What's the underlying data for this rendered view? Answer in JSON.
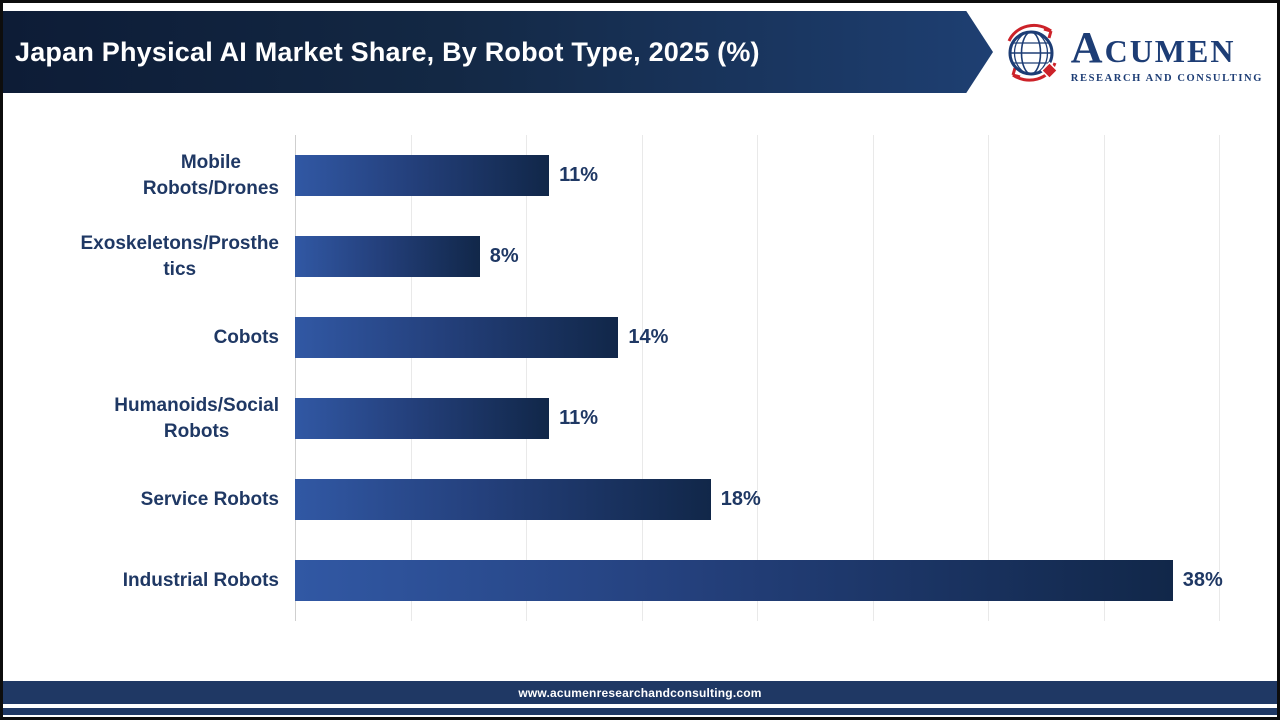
{
  "header": {
    "title": "Japan Physical AI Market Share, By Robot Type, 2025 (%)"
  },
  "logo": {
    "brand_initial": "A",
    "brand_rest": "CUMEN",
    "tagline": "RESEARCH AND CONSULTING",
    "globe_icon": "globe-with-red-orbit-arrows",
    "colors": {
      "navy": "#1d3d75",
      "red": "#cc2229"
    }
  },
  "footer": {
    "website": "www.acumenresearchandconsulting.com"
  },
  "chart_data": {
    "type": "bar",
    "orientation": "horizontal",
    "title": "Japan Physical AI Market Share, By Robot Type, 2025 (%)",
    "categories": [
      "Mobile Robots/Drones",
      "Exoskeletons/Prosthetics",
      "Cobots",
      "Humanoids/Social Robots",
      "Service Robots",
      "Industrial Robots"
    ],
    "category_label_lines": [
      [
        "Mobile",
        "Robots/Drones"
      ],
      [
        "Exoskeletons/Prosthe",
        "tics"
      ],
      [
        "Cobots"
      ],
      [
        "Humanoids/Social",
        "Robots"
      ],
      [
        "Service Robots"
      ],
      [
        "Industrial Robots"
      ]
    ],
    "values": [
      11,
      8,
      14,
      11,
      18,
      38
    ],
    "value_labels": [
      "11%",
      "8%",
      "14%",
      "11%",
      "18%",
      "38%"
    ],
    "xlim": [
      0,
      40
    ],
    "gridline_step": 5,
    "grid": "vertical-only",
    "legend": "none",
    "bar_gradient": [
      "#3158a4",
      "#112749"
    ],
    "label_color": "#1F3864",
    "value_label_color": "#1F3864"
  }
}
